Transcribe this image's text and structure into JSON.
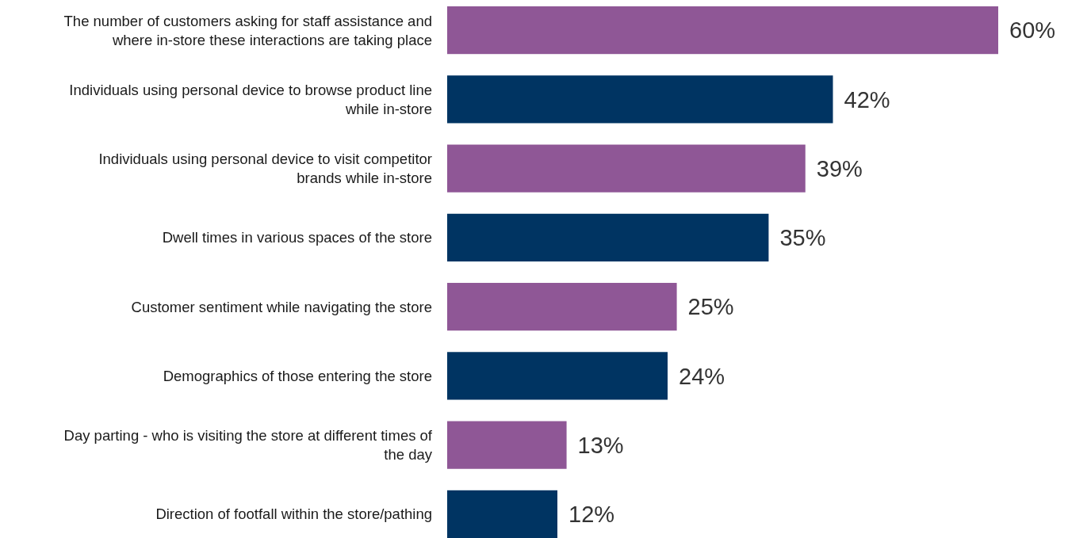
{
  "chart_data": {
    "type": "bar",
    "orientation": "horizontal",
    "categories": [
      "The number of customers asking for staff assistance and where in-store these interactions are taking place",
      "Individuals using personal device to browse product line while in-store",
      "Individuals using personal device to visit competitor brands while in-store",
      "Dwell times in various spaces of the store",
      "Customer sentiment while navigating the store",
      "Demographics of those entering the store",
      "Day parting - who is visiting the store at different times of the day",
      "Direction of footfall within the store/pathing"
    ],
    "values": [
      60,
      42,
      39,
      35,
      25,
      24,
      13,
      12
    ],
    "value_labels": [
      "60%",
      "42%",
      "39%",
      "35%",
      "25%",
      "24%",
      "13%",
      "12%"
    ],
    "colors": [
      "#8f5796",
      "#003462",
      "#8f5796",
      "#003462",
      "#8f5796",
      "#003462",
      "#8f5796",
      "#003462"
    ]
  }
}
